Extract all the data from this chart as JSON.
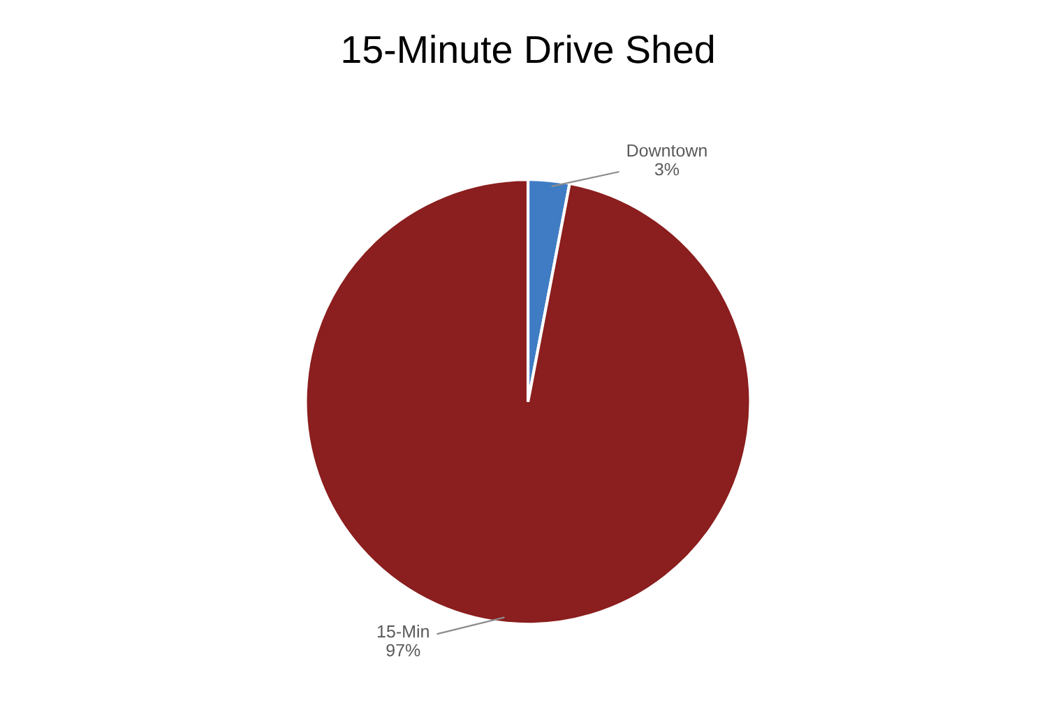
{
  "chart_data": {
    "type": "pie",
    "title": "15-Minute Drive Shed",
    "categories": [
      "Downtown",
      "15-Min"
    ],
    "values": [
      3,
      97
    ],
    "colors": [
      "#3f7cc4",
      "#8b1e1e"
    ],
    "value_labels": [
      "3%",
      "97%"
    ],
    "legend": false
  }
}
